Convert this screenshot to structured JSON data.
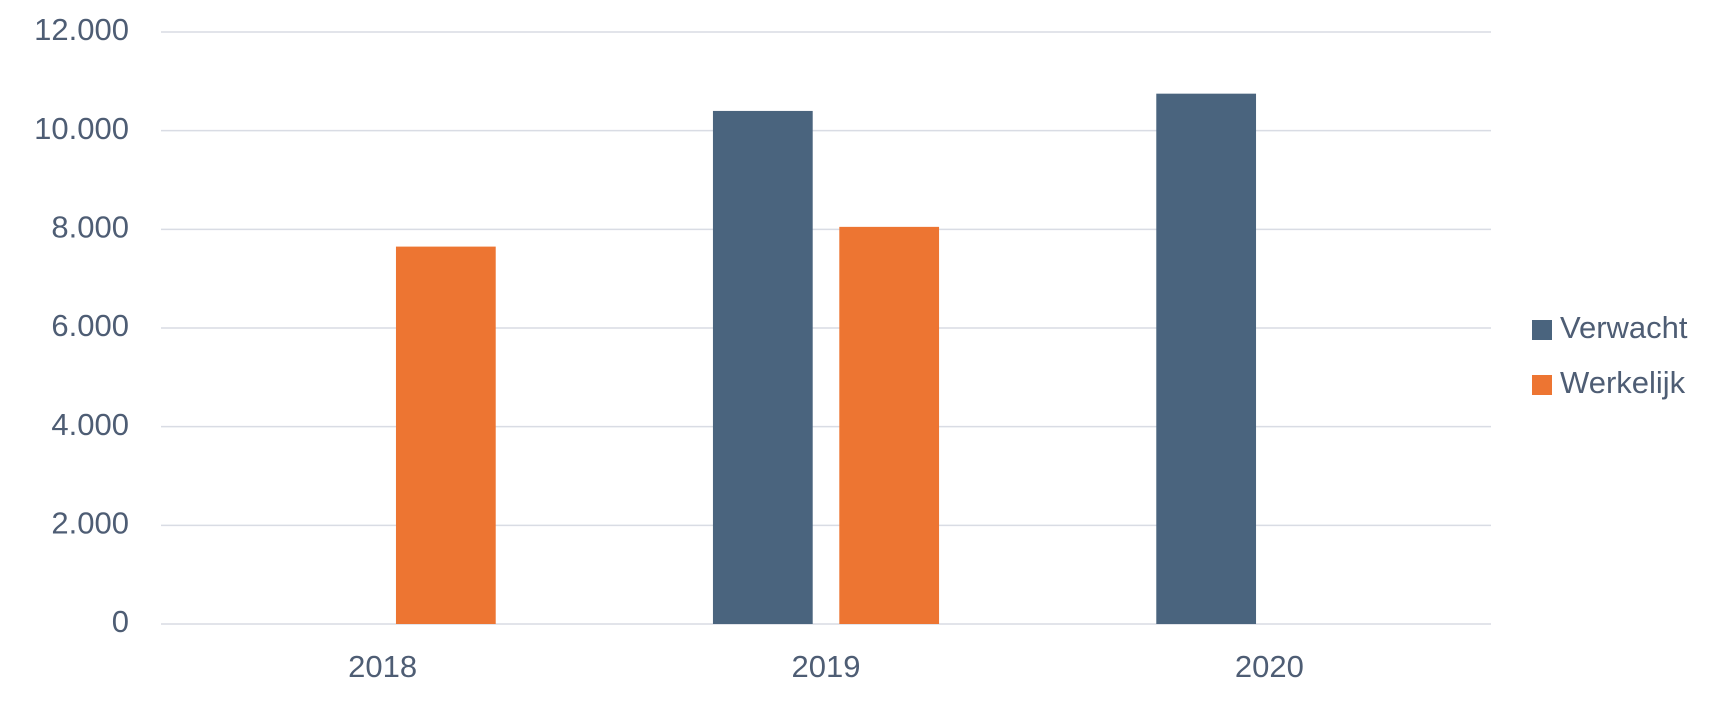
{
  "chart_data": {
    "type": "bar",
    "categories": [
      "2018",
      "2019",
      "2020"
    ],
    "series": [
      {
        "name": "Verwacht",
        "color": "#4a647e",
        "values": [
          null,
          10400,
          10750
        ]
      },
      {
        "name": "Werkelijk",
        "color": "#ed7532",
        "values": [
          7650,
          8050,
          null
        ]
      }
    ],
    "ylim": [
      0,
      12000
    ],
    "yticks": [
      0,
      {
        "value": 2000,
        "label": "2.000"
      },
      {
        "value": 4000,
        "label": "4.000"
      },
      {
        "value": 6000,
        "label": "6.000"
      },
      {
        "value": 8000,
        "label": "8.000"
      },
      {
        "value": 10000,
        "label": "10.000"
      },
      {
        "value": 12000,
        "label": "12.000"
      }
    ],
    "grid": true,
    "legend": "right"
  }
}
